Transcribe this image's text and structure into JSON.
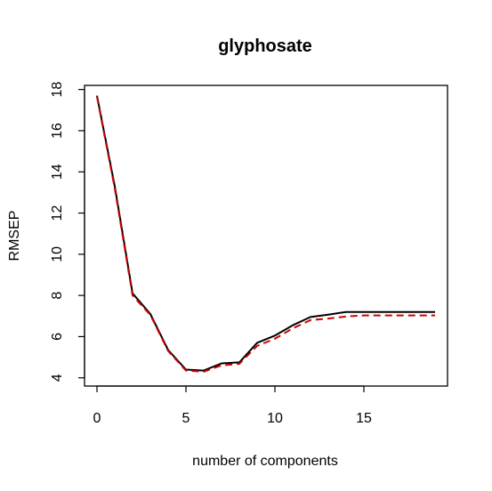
{
  "chart_data": {
    "type": "line",
    "title": "glyphosate",
    "xlabel": "number of components",
    "ylabel": "RMSEP",
    "xlim": [
      -0.7,
      19.7
    ],
    "ylim": [
      3.6,
      18.2
    ],
    "xticks": [
      0,
      5,
      10,
      15
    ],
    "yticks": [
      4,
      6,
      8,
      10,
      12,
      14,
      16,
      18
    ],
    "grid": false,
    "legend": "none",
    "x": [
      0,
      1,
      2,
      3,
      4,
      5,
      6,
      7,
      8,
      9,
      10,
      11,
      12,
      13,
      14,
      15,
      16,
      17,
      18,
      19
    ],
    "series": [
      {
        "color": "#000000",
        "style": "solid",
        "values": [
          17.7,
          13.3,
          8.1,
          7.1,
          5.35,
          4.4,
          4.35,
          4.7,
          4.75,
          5.7,
          6.05,
          6.55,
          6.95,
          7.07,
          7.2,
          7.2,
          7.2,
          7.2,
          7.2,
          7.2
        ]
      },
      {
        "color": "#cc0000",
        "style": "dashed",
        "values": [
          17.65,
          13.2,
          8.0,
          7.05,
          5.3,
          4.35,
          4.3,
          4.6,
          4.68,
          5.55,
          5.9,
          6.4,
          6.8,
          6.88,
          6.98,
          7.03,
          7.03,
          7.03,
          7.03,
          7.03
        ]
      }
    ]
  }
}
